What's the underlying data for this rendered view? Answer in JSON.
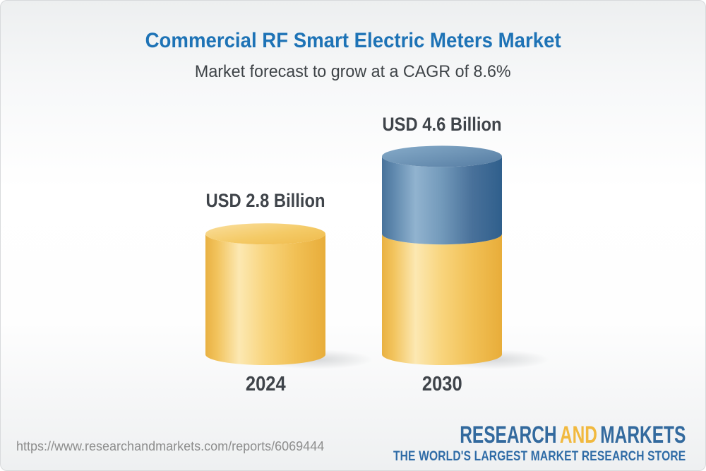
{
  "header": {
    "title": "Commercial RF Smart Electric Meters Market",
    "subtitle": "Market forecast to grow at a CAGR of 8.6%"
  },
  "chart_data": {
    "type": "bar",
    "style": "3d-cylinder",
    "title": "Commercial RF Smart Electric Meters Market",
    "subtitle": "Market forecast to grow at a CAGR of 8.6%",
    "unit": "USD Billion",
    "cagr_percent": 8.6,
    "categories": [
      "2024",
      "2030"
    ],
    "values": [
      2.8,
      4.6
    ],
    "value_labels": [
      "USD 2.8 Billion",
      "USD 4.6 Billion"
    ],
    "ylim": [
      0,
      5
    ],
    "grid": false,
    "legend": false,
    "bars": [
      {
        "category": "2024",
        "label": "USD 2.8 Billion",
        "segments": [
          {
            "value": 2.8,
            "color_key": "gold"
          }
        ]
      },
      {
        "category": "2030",
        "label": "USD 4.6 Billion",
        "segments": [
          {
            "value": 2.8,
            "color_key": "gold"
          },
          {
            "value": 1.8,
            "color_key": "blue"
          }
        ]
      }
    ],
    "colors": {
      "gold": "#f5c963",
      "blue": "#5d86ac"
    }
  },
  "style_colors": {
    "title_blue": "#1e73b6",
    "text_dark": "#3f444a",
    "url_gray": "#8d8d8d",
    "logo_blue": "#336a9e",
    "logo_gold": "#f1b93f"
  },
  "footer": {
    "url": "https://www.researchandmarkets.com/reports/6069444",
    "logo": {
      "word1": "RESEARCH",
      "word2": "AND",
      "word3": "MARKETS",
      "tagline": "THE WORLD'S LARGEST MARKET RESEARCH STORE"
    }
  }
}
